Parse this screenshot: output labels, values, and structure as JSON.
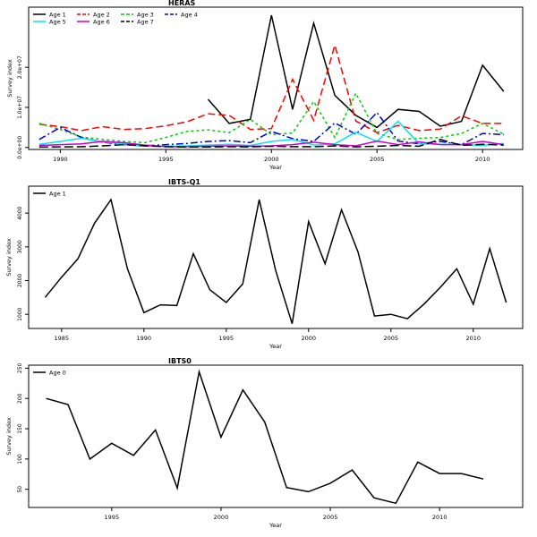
{
  "chart_data": [
    {
      "id": "heras",
      "type": "line",
      "title": "HERAS",
      "xlabel": "Year",
      "ylabel": "Survey index",
      "xlim": [
        1988.5,
        2011.9
      ],
      "ylim": [
        -500000,
        35000000
      ],
      "xticks": [
        1990,
        1995,
        2000,
        2005,
        2010
      ],
      "yticks": [
        {
          "v": 0,
          "label": "0.0e+00"
        },
        {
          "v": 10000000,
          "label": "1.0e+07"
        },
        {
          "v": 20000000,
          "label": "2.0e+07"
        }
      ],
      "legend": {
        "placement": "top-left",
        "columns": 4
      },
      "series": [
        {
          "name": "Age 1",
          "color": "#000000",
          "dash": "solid",
          "x": [
            1997,
            1998,
            1999,
            2000,
            2001,
            2002,
            2003,
            2004,
            2005,
            2006,
            2007,
            2008,
            2009,
            2010,
            2011
          ],
          "y": [
            12000000,
            6000000,
            7000000,
            33000000,
            9500000,
            31000000,
            13000000,
            8000000,
            5000000,
            9500000,
            9000000,
            5300000,
            6500000,
            20500000,
            14000000
          ]
        },
        {
          "name": "Age 2",
          "color": "#ff0000",
          "dash": "8,4",
          "x": [
            1989,
            1990,
            1991,
            1992,
            1993,
            1994,
            1995,
            1996,
            1997,
            1998,
            1999,
            2000,
            2001,
            2002,
            2003,
            2004,
            2005,
            2006,
            2007,
            2008,
            2009,
            2010,
            2011
          ],
          "y": [
            5800000,
            5200000,
            4200000,
            5200000,
            4500000,
            4700000,
            5400000,
            6400000,
            8400000,
            8000000,
            4500000,
            4700000,
            17000000,
            6800000,
            25500000,
            6600000,
            3700000,
            5500000,
            4200000,
            4600000,
            7900000,
            6000000,
            6000000
          ]
        },
        {
          "name": "Age 3",
          "color": "#00cc00",
          "dash": "3,3",
          "x": [
            1989,
            1990,
            1991,
            1992,
            1993,
            1994,
            1995,
            1996,
            1997,
            1998,
            1999,
            2000,
            2001,
            2002,
            2003,
            2004,
            2005,
            2006,
            2007,
            2008,
            2009,
            2010,
            2011
          ],
          "y": [
            6000000,
            4500000,
            2600000,
            2000000,
            1500000,
            1200000,
            2500000,
            4000000,
            4400000,
            3700000,
            7000000,
            3200000,
            3600000,
            11500000,
            2500000,
            13500000,
            3500000,
            2000000,
            2300000,
            2500000,
            3500000,
            6000000,
            3300000
          ]
        },
        {
          "name": "Age 4",
          "color": "#0000cc",
          "dash": "8,3,2,3",
          "x": [
            1989,
            1990,
            1991,
            1992,
            1993,
            1994,
            1995,
            1996,
            1997,
            1998,
            1999,
            2000,
            2001,
            2002,
            2003,
            2004,
            2005,
            2006,
            2007,
            2008,
            2009,
            2010,
            2011
          ],
          "y": [
            2000000,
            5000000,
            2500000,
            1300000,
            700000,
            400000,
            700000,
            1000000,
            1500000,
            1700000,
            1200000,
            4000000,
            2200000,
            1500000,
            6100000,
            3300000,
            8700000,
            1600000,
            900000,
            1500000,
            700000,
            3500000,
            3200000
          ]
        },
        {
          "name": "Age 5",
          "color": "#00e5ee",
          "dash": "solid",
          "x": [
            1989,
            1990,
            1991,
            1992,
            1993,
            1994,
            1995,
            1996,
            1997,
            1998,
            1999,
            2000,
            2001,
            2002,
            2003,
            2004,
            2005,
            2006,
            2007,
            2008,
            2009,
            2010,
            2011
          ],
          "y": [
            800000,
            1500000,
            2300000,
            1400000,
            900000,
            400000,
            300000,
            400000,
            600000,
            800000,
            500000,
            1500000,
            2000000,
            600000,
            900000,
            3800000,
            1500000,
            6500000,
            900000,
            800000,
            700000,
            500000,
            1000000
          ]
        },
        {
          "name": "Age 6",
          "color": "#cc00cc",
          "dash": "solid",
          "x": [
            1989,
            1990,
            1991,
            1992,
            1993,
            1994,
            1995,
            1996,
            1997,
            1998,
            1999,
            2000,
            2001,
            2002,
            2003,
            2004,
            2005,
            2006,
            2007,
            2008,
            2009,
            2010,
            2011
          ],
          "y": [
            500000,
            700000,
            900000,
            1500000,
            1200000,
            600000,
            200000,
            200000,
            300000,
            400000,
            300000,
            400000,
            700000,
            1300000,
            700000,
            400000,
            1600000,
            700000,
            1400000,
            700000,
            700000,
            1500000,
            700000
          ]
        },
        {
          "name": "Age 7",
          "color": "#000000",
          "dash": "10,4",
          "x": [
            1989,
            1990,
            1991,
            1992,
            1993,
            1994,
            1995,
            1996,
            1997,
            1998,
            1999,
            2000,
            2001,
            2002,
            2003,
            2004,
            2005,
            2006,
            2007,
            2008,
            2009,
            2010,
            2011
          ],
          "y": [
            100000,
            150000,
            200000,
            400000,
            700000,
            400000,
            200000,
            100000,
            100000,
            200000,
            150000,
            300000,
            200000,
            200000,
            400000,
            150000,
            300000,
            500000,
            300000,
            2000000,
            500000,
            800000,
            600000
          ]
        }
      ]
    },
    {
      "id": "ibts-q1",
      "type": "line",
      "title": "IBTS-Q1",
      "xlabel": "Year",
      "ylabel": "Survey index",
      "xlim": [
        1983,
        2013
      ],
      "ylim": [
        580,
        4800
      ],
      "xticks": [
        1985,
        1990,
        1995,
        2000,
        2005,
        2010
      ],
      "yticks": [
        {
          "v": 1000,
          "label": "1000"
        },
        {
          "v": 2000,
          "label": "2000"
        },
        {
          "v": 3000,
          "label": "3000"
        },
        {
          "v": 4000,
          "label": "4000"
        }
      ],
      "legend": {
        "placement": "top-left",
        "columns": 1
      },
      "series": [
        {
          "name": "Age 1",
          "color": "#000000",
          "dash": "solid",
          "x": [
            1984,
            1985,
            1986,
            1987,
            1988,
            1989,
            1990,
            1991,
            1992,
            1993,
            1994,
            1995,
            1996,
            1997,
            1998,
            1999,
            2000,
            2001,
            2002,
            2003,
            2004,
            2005,
            2006,
            2007,
            2008,
            2009,
            2010,
            2011,
            2012
          ],
          "y": [
            1500,
            2100,
            2650,
            3700,
            4400,
            2350,
            1050,
            1280,
            1260,
            2800,
            1730,
            1350,
            1900,
            4400,
            2300,
            720,
            3750,
            2500,
            4100,
            2850,
            950,
            1000,
            870,
            1300,
            1800,
            2350,
            1300,
            2950,
            1350
          ]
        }
      ]
    },
    {
      "id": "ibts0",
      "type": "line",
      "title": "IBTS0",
      "xlabel": "Year",
      "ylabel": "Survey index",
      "xlim": [
        1991.2,
        2013.8
      ],
      "ylim": [
        20,
        255
      ],
      "xticks": [
        1995,
        2000,
        2005,
        2010
      ],
      "yticks": [
        {
          "v": 50,
          "label": "50"
        },
        {
          "v": 100,
          "label": "100"
        },
        {
          "v": 150,
          "label": "150"
        },
        {
          "v": 200,
          "label": "200"
        },
        {
          "v": 250,
          "label": "250"
        }
      ],
      "legend": {
        "placement": "top-left",
        "columns": 1
      },
      "series": [
        {
          "name": "Age 0",
          "color": "#000000",
          "dash": "solid",
          "x": [
            1992,
            1993,
            1994,
            1995,
            1996,
            1997,
            1998,
            1999,
            2000,
            2001,
            2002,
            2003,
            2004,
            2005,
            2006,
            2007,
            2008,
            2009,
            2010,
            2011,
            2012
          ],
          "y": [
            200,
            190,
            100,
            126,
            106,
            148,
            52,
            244,
            136,
            214,
            161,
            53,
            46,
            60,
            82,
            36,
            27,
            95,
            76,
            76,
            67
          ]
        }
      ]
    }
  ]
}
